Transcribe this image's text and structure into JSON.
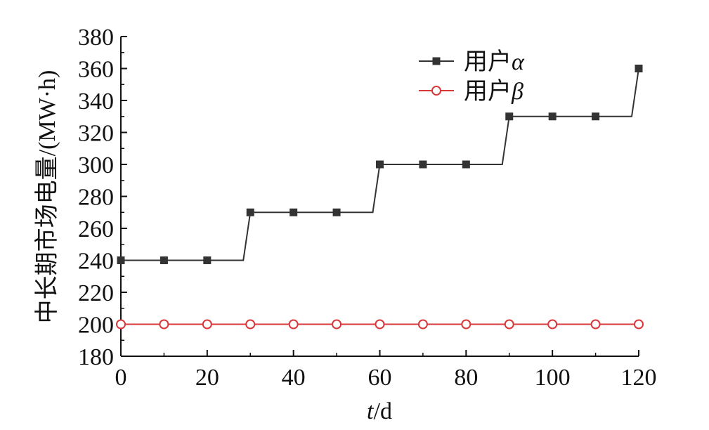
{
  "chart_data": {
    "type": "line",
    "xlabel": "t/d",
    "xlabel_italic": "t",
    "xlabel_rest": "/d",
    "ylabel": "中长期市场电量/(MW·h)",
    "xlim": [
      0,
      120
    ],
    "ylim": [
      180,
      380
    ],
    "xticks": [
      0,
      20,
      40,
      60,
      80,
      100,
      120
    ],
    "yticks": [
      180,
      200,
      220,
      240,
      260,
      280,
      300,
      320,
      340,
      360,
      380
    ],
    "grid": false,
    "legend_position": "top-right",
    "step_shape": "step",
    "series": [
      {
        "name": "用户α",
        "name_prefix": "用户",
        "name_symbol": "α",
        "color": "#333333",
        "marker": "square-filled",
        "x": [
          0,
          10,
          20,
          30,
          40,
          50,
          60,
          70,
          80,
          90,
          100,
          110,
          120
        ],
        "values": [
          240,
          240,
          240,
          270,
          270,
          270,
          300,
          300,
          300,
          330,
          330,
          330,
          360
        ]
      },
      {
        "name": "用户β",
        "name_prefix": "用户",
        "name_symbol": "β",
        "color": "#d9383a",
        "marker": "circle-open",
        "x": [
          0,
          10,
          20,
          30,
          40,
          50,
          60,
          70,
          80,
          90,
          100,
          110,
          120
        ],
        "values": [
          200,
          200,
          200,
          200,
          200,
          200,
          200,
          200,
          200,
          200,
          200,
          200,
          200
        ]
      }
    ]
  }
}
